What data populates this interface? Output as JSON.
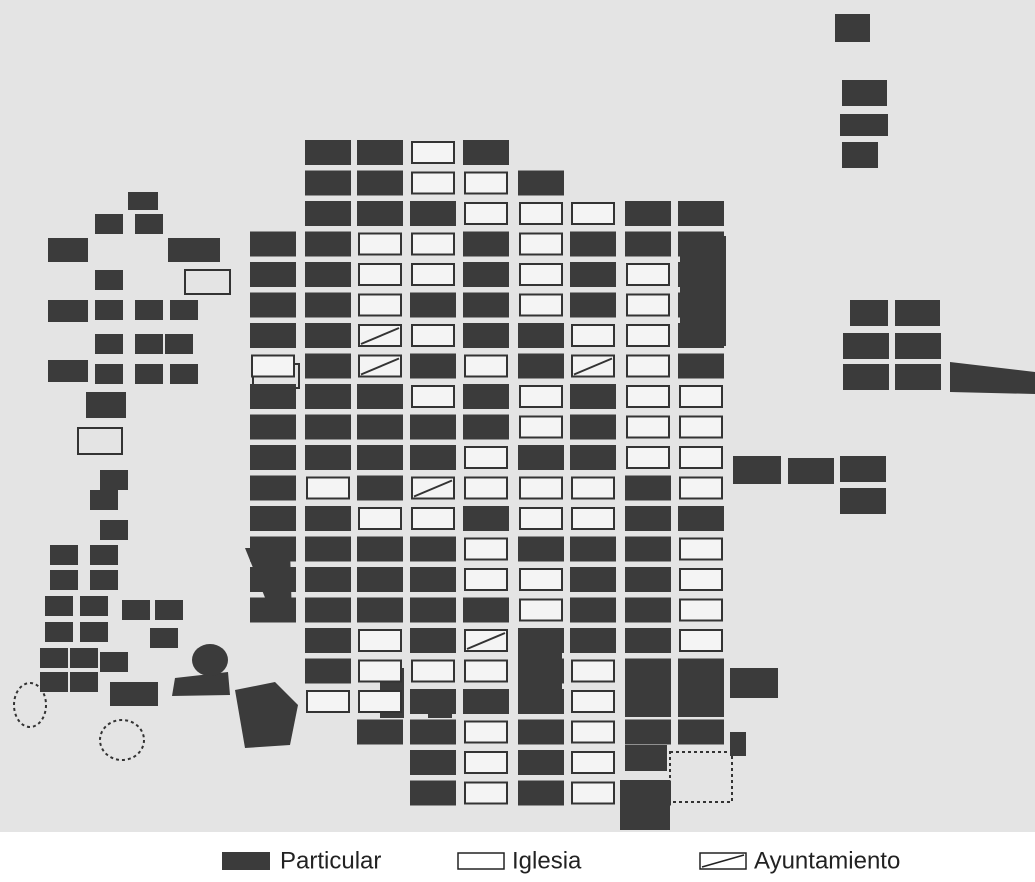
{
  "legend": {
    "items": [
      {
        "label": "Particular"
      },
      {
        "label": "Iglesia"
      },
      {
        "label": "Ayuntamiento"
      }
    ]
  }
}
